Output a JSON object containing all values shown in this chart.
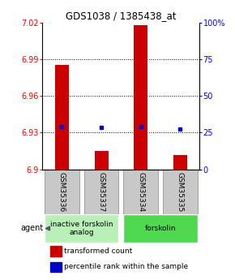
{
  "title": "GDS1038 / 1385438_at",
  "samples": [
    "GSM35336",
    "GSM35337",
    "GSM35334",
    "GSM35335"
  ],
  "red_bar_values": [
    6.985,
    6.915,
    7.018,
    6.912
  ],
  "blue_dot_values": [
    6.935,
    6.934,
    6.935,
    6.933
  ],
  "ymin": 6.9,
  "ymax": 7.02,
  "yticks_left": [
    6.9,
    6.93,
    6.96,
    6.99,
    7.02
  ],
  "yticks_right": [
    0,
    25,
    50,
    75,
    100
  ],
  "yticks_right_labels": [
    "0",
    "25",
    "50",
    "75",
    "100%"
  ],
  "groups": [
    {
      "label": "inactive forskolin\nanalog",
      "samples": [
        0,
        1
      ],
      "color": "#b8f0b8"
    },
    {
      "label": "forskolin",
      "samples": [
        2,
        3
      ],
      "color": "#50d850"
    }
  ],
  "bar_color": "#cc0000",
  "dot_color": "#0000cc",
  "bar_width": 0.35,
  "agent_label": "agent",
  "legend_red": "transformed count",
  "legend_blue": "percentile rank within the sample",
  "sample_box_color": "#c8c8c8",
  "sample_box_edge": "#888888",
  "fig_width": 2.9,
  "fig_height": 3.45,
  "dpi": 100
}
